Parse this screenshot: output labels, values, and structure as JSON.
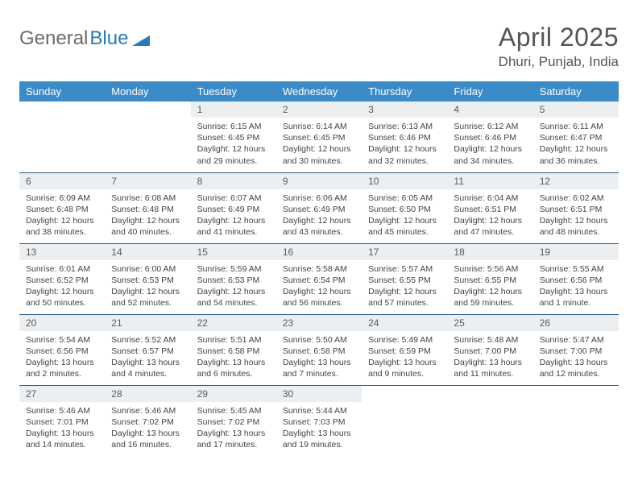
{
  "brand": {
    "part1": "General",
    "part2": "Blue"
  },
  "title": "April 2025",
  "location": "Dhuri, Punjab, India",
  "colors": {
    "header_bg": "#3b8bc9",
    "row_border": "#2a5a8a",
    "daynum_bg": "#eceff2",
    "text": "#444444",
    "title": "#555555",
    "logo_gray": "#6b6b6b",
    "logo_blue": "#2a7ab9"
  },
  "weekdays": [
    "Sunday",
    "Monday",
    "Tuesday",
    "Wednesday",
    "Thursday",
    "Friday",
    "Saturday"
  ],
  "grid": [
    [
      {
        "empty": true
      },
      {
        "empty": true
      },
      {
        "num": "1",
        "sunrise": "Sunrise: 6:15 AM",
        "sunset": "Sunset: 6:45 PM",
        "d1": "Daylight: 12 hours",
        "d2": "and 29 minutes."
      },
      {
        "num": "2",
        "sunrise": "Sunrise: 6:14 AM",
        "sunset": "Sunset: 6:45 PM",
        "d1": "Daylight: 12 hours",
        "d2": "and 30 minutes."
      },
      {
        "num": "3",
        "sunrise": "Sunrise: 6:13 AM",
        "sunset": "Sunset: 6:46 PM",
        "d1": "Daylight: 12 hours",
        "d2": "and 32 minutes."
      },
      {
        "num": "4",
        "sunrise": "Sunrise: 6:12 AM",
        "sunset": "Sunset: 6:46 PM",
        "d1": "Daylight: 12 hours",
        "d2": "and 34 minutes."
      },
      {
        "num": "5",
        "sunrise": "Sunrise: 6:11 AM",
        "sunset": "Sunset: 6:47 PM",
        "d1": "Daylight: 12 hours",
        "d2": "and 36 minutes."
      }
    ],
    [
      {
        "num": "6",
        "sunrise": "Sunrise: 6:09 AM",
        "sunset": "Sunset: 6:48 PM",
        "d1": "Daylight: 12 hours",
        "d2": "and 38 minutes."
      },
      {
        "num": "7",
        "sunrise": "Sunrise: 6:08 AM",
        "sunset": "Sunset: 6:48 PM",
        "d1": "Daylight: 12 hours",
        "d2": "and 40 minutes."
      },
      {
        "num": "8",
        "sunrise": "Sunrise: 6:07 AM",
        "sunset": "Sunset: 6:49 PM",
        "d1": "Daylight: 12 hours",
        "d2": "and 41 minutes."
      },
      {
        "num": "9",
        "sunrise": "Sunrise: 6:06 AM",
        "sunset": "Sunset: 6:49 PM",
        "d1": "Daylight: 12 hours",
        "d2": "and 43 minutes."
      },
      {
        "num": "10",
        "sunrise": "Sunrise: 6:05 AM",
        "sunset": "Sunset: 6:50 PM",
        "d1": "Daylight: 12 hours",
        "d2": "and 45 minutes."
      },
      {
        "num": "11",
        "sunrise": "Sunrise: 6:04 AM",
        "sunset": "Sunset: 6:51 PM",
        "d1": "Daylight: 12 hours",
        "d2": "and 47 minutes."
      },
      {
        "num": "12",
        "sunrise": "Sunrise: 6:02 AM",
        "sunset": "Sunset: 6:51 PM",
        "d1": "Daylight: 12 hours",
        "d2": "and 48 minutes."
      }
    ],
    [
      {
        "num": "13",
        "sunrise": "Sunrise: 6:01 AM",
        "sunset": "Sunset: 6:52 PM",
        "d1": "Daylight: 12 hours",
        "d2": "and 50 minutes."
      },
      {
        "num": "14",
        "sunrise": "Sunrise: 6:00 AM",
        "sunset": "Sunset: 6:53 PM",
        "d1": "Daylight: 12 hours",
        "d2": "and 52 minutes."
      },
      {
        "num": "15",
        "sunrise": "Sunrise: 5:59 AM",
        "sunset": "Sunset: 6:53 PM",
        "d1": "Daylight: 12 hours",
        "d2": "and 54 minutes."
      },
      {
        "num": "16",
        "sunrise": "Sunrise: 5:58 AM",
        "sunset": "Sunset: 6:54 PM",
        "d1": "Daylight: 12 hours",
        "d2": "and 56 minutes."
      },
      {
        "num": "17",
        "sunrise": "Sunrise: 5:57 AM",
        "sunset": "Sunset: 6:55 PM",
        "d1": "Daylight: 12 hours",
        "d2": "and 57 minutes."
      },
      {
        "num": "18",
        "sunrise": "Sunrise: 5:56 AM",
        "sunset": "Sunset: 6:55 PM",
        "d1": "Daylight: 12 hours",
        "d2": "and 59 minutes."
      },
      {
        "num": "19",
        "sunrise": "Sunrise: 5:55 AM",
        "sunset": "Sunset: 6:56 PM",
        "d1": "Daylight: 13 hours",
        "d2": "and 1 minute."
      }
    ],
    [
      {
        "num": "20",
        "sunrise": "Sunrise: 5:54 AM",
        "sunset": "Sunset: 6:56 PM",
        "d1": "Daylight: 13 hours",
        "d2": "and 2 minutes."
      },
      {
        "num": "21",
        "sunrise": "Sunrise: 5:52 AM",
        "sunset": "Sunset: 6:57 PM",
        "d1": "Daylight: 13 hours",
        "d2": "and 4 minutes."
      },
      {
        "num": "22",
        "sunrise": "Sunrise: 5:51 AM",
        "sunset": "Sunset: 6:58 PM",
        "d1": "Daylight: 13 hours",
        "d2": "and 6 minutes."
      },
      {
        "num": "23",
        "sunrise": "Sunrise: 5:50 AM",
        "sunset": "Sunset: 6:58 PM",
        "d1": "Daylight: 13 hours",
        "d2": "and 7 minutes."
      },
      {
        "num": "24",
        "sunrise": "Sunrise: 5:49 AM",
        "sunset": "Sunset: 6:59 PM",
        "d1": "Daylight: 13 hours",
        "d2": "and 9 minutes."
      },
      {
        "num": "25",
        "sunrise": "Sunrise: 5:48 AM",
        "sunset": "Sunset: 7:00 PM",
        "d1": "Daylight: 13 hours",
        "d2": "and 11 minutes."
      },
      {
        "num": "26",
        "sunrise": "Sunrise: 5:47 AM",
        "sunset": "Sunset: 7:00 PM",
        "d1": "Daylight: 13 hours",
        "d2": "and 12 minutes."
      }
    ],
    [
      {
        "num": "27",
        "sunrise": "Sunrise: 5:46 AM",
        "sunset": "Sunset: 7:01 PM",
        "d1": "Daylight: 13 hours",
        "d2": "and 14 minutes."
      },
      {
        "num": "28",
        "sunrise": "Sunrise: 5:46 AM",
        "sunset": "Sunset: 7:02 PM",
        "d1": "Daylight: 13 hours",
        "d2": "and 16 minutes."
      },
      {
        "num": "29",
        "sunrise": "Sunrise: 5:45 AM",
        "sunset": "Sunset: 7:02 PM",
        "d1": "Daylight: 13 hours",
        "d2": "and 17 minutes."
      },
      {
        "num": "30",
        "sunrise": "Sunrise: 5:44 AM",
        "sunset": "Sunset: 7:03 PM",
        "d1": "Daylight: 13 hours",
        "d2": "and 19 minutes."
      },
      {
        "empty": true
      },
      {
        "empty": true
      },
      {
        "empty": true
      }
    ]
  ]
}
